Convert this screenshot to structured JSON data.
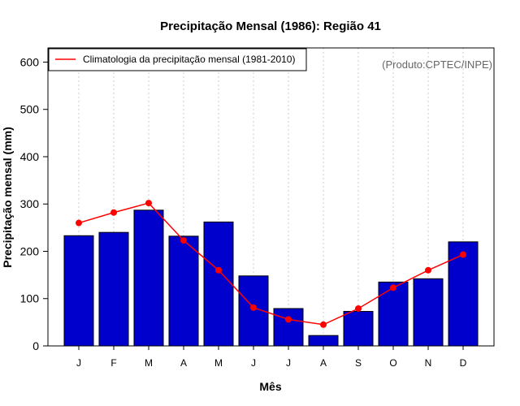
{
  "colors": {
    "bar": "#0000cc",
    "bar_border": "#000000",
    "climatology": "#ff0000",
    "grid": "#cccccc",
    "credit": "#666666"
  },
  "credit": "(Produto:CPTEC/INPE)",
  "chart_data": {
    "type": "bar",
    "title": "Precipitação Mensal (1986): Região 41",
    "xlabel": "Mês",
    "ylabel": "Precipitação mensal (mm)",
    "ylim": [
      0,
      630
    ],
    "yticks": [
      0,
      100,
      200,
      300,
      400,
      500,
      600
    ],
    "categories": [
      "J",
      "F",
      "M",
      "A",
      "M",
      "J",
      "J",
      "A",
      "S",
      "O",
      "N",
      "D"
    ],
    "values": [
      233,
      240,
      287,
      232,
      262,
      148,
      79,
      22,
      73,
      135,
      142,
      220
    ],
    "series": [
      {
        "name": "Precipitação mensal 1986",
        "type": "bar",
        "values": [
          233,
          240,
          287,
          232,
          262,
          148,
          79,
          22,
          73,
          135,
          142,
          220
        ]
      },
      {
        "name": "Climatologia da precipitação mensal (1981-2010)",
        "type": "line",
        "values": [
          260,
          282,
          302,
          223,
          160,
          81,
          56,
          45,
          79,
          123,
          160,
          193
        ]
      }
    ],
    "legend": {
      "position": "top-left",
      "entries": [
        "Climatologia da precipitação mensal (1981-2010)"
      ]
    },
    "grid": true
  }
}
